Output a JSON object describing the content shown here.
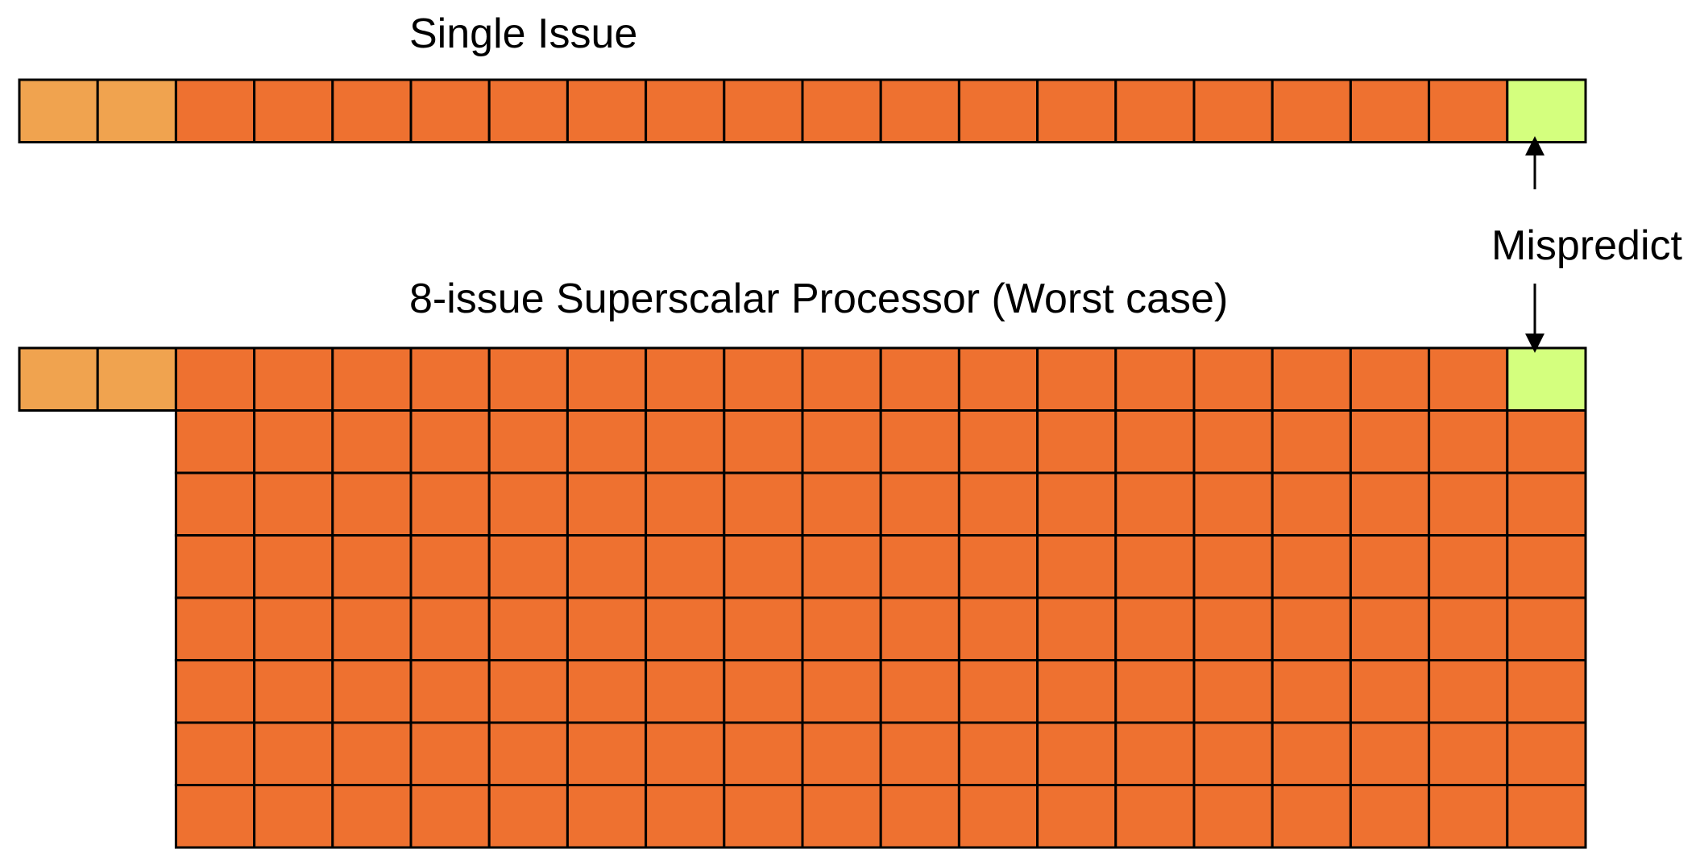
{
  "labels": {
    "single_issue": "Single Issue",
    "superscalar": "8-issue Superscalar Processor (Worst case)",
    "mispredict": "Mispredict"
  },
  "colors": {
    "early_stage": "#F0A34F",
    "pipeline_slot": "#EE7130",
    "mispredict_stage": "#D4FF7E",
    "border": "#000000"
  },
  "pipeline": {
    "stages_per_row": 20,
    "early_stages": 2,
    "single_issue_rows": 1,
    "superscalar_issue_width": 8,
    "mispredict_stage_number": 20
  }
}
